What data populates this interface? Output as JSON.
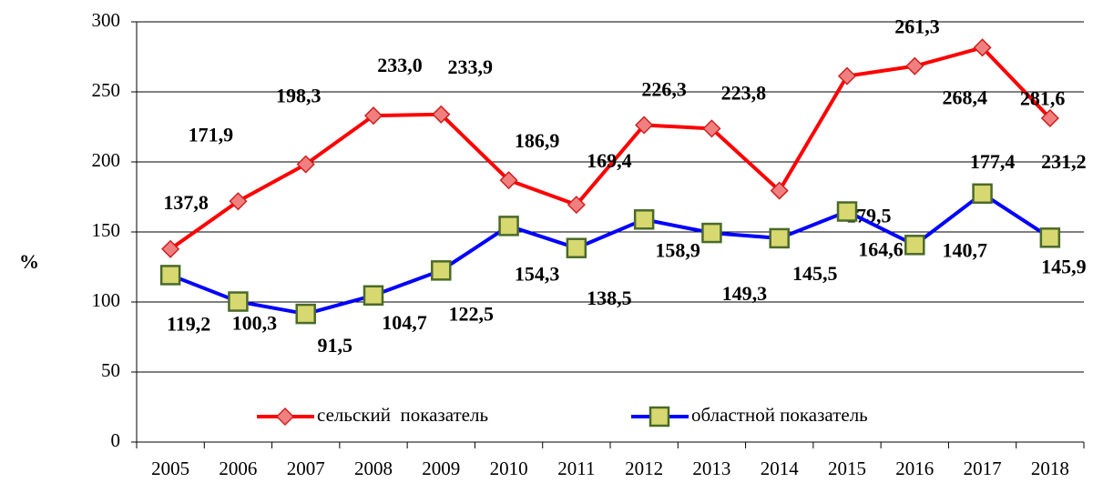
{
  "chart_data": {
    "type": "line",
    "y_label": "%",
    "categories": [
      "2005",
      "2006",
      "2007",
      "2008",
      "2009",
      "2010",
      "2011",
      "2012",
      "2013",
      "2014",
      "2015",
      "2016",
      "2017",
      "2018"
    ],
    "series": [
      {
        "name": "сельский  показатель",
        "color": "#ff0000",
        "marker": "diamond",
        "values": [
          137.8,
          171.9,
          198.3,
          233.0,
          233.9,
          186.9,
          169.4,
          226.3,
          223.8,
          179.5,
          261.3,
          268.4,
          281.6,
          231.2
        ],
        "value_labels": [
          "137,8",
          "171,9",
          "198,3",
          "233,0",
          "233,9",
          "186,9",
          "169,4",
          "226,3",
          "223,8",
          "179,5",
          "261,3",
          "268,4",
          "281,6",
          "231,2"
        ]
      },
      {
        "name": "областной показатель",
        "color": "#0000ff",
        "marker": "square",
        "values": [
          119.2,
          100.3,
          91.5,
          104.7,
          122.5,
          154.3,
          138.5,
          158.9,
          149.3,
          145.5,
          164.6,
          140.7,
          177.4,
          145.9
        ],
        "value_labels": [
          "119,2",
          "100,3",
          "91,5",
          "104,7",
          "122,5",
          "154,3",
          "138,5",
          "158,9",
          "149,3",
          "145,5",
          "164,6",
          "140,7",
          "177,4",
          "145,9"
        ]
      }
    ],
    "ylim": [
      0,
      300
    ],
    "yticks": [
      0,
      50,
      100,
      150,
      200,
      250,
      300
    ],
    "grid": true,
    "legend": "bottom"
  }
}
